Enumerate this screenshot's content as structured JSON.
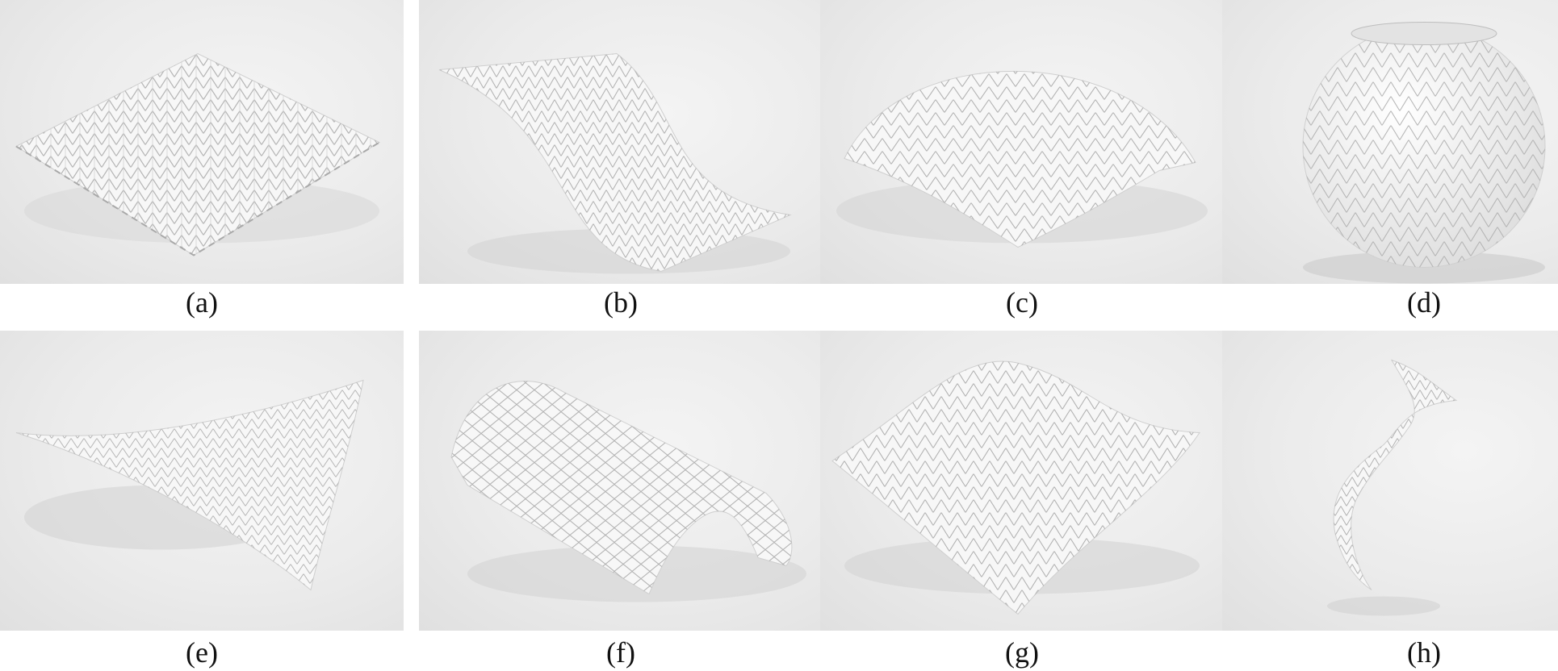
{
  "figure": {
    "panels": [
      {
        "id": "a",
        "label": "(a)",
        "shape": "flat-sheet"
      },
      {
        "id": "b",
        "label": "(b)",
        "shape": "s-curve-sheet"
      },
      {
        "id": "c",
        "label": "(c)",
        "shape": "dome"
      },
      {
        "id": "d",
        "label": "(d)",
        "shape": "sphere"
      },
      {
        "id": "e",
        "label": "(e)",
        "shape": "saddle"
      },
      {
        "id": "f",
        "label": "(f)",
        "shape": "cylinder-arch"
      },
      {
        "id": "g",
        "label": "(g)",
        "shape": "wave-sheet"
      },
      {
        "id": "h",
        "label": "(h)",
        "shape": "helicoid"
      }
    ]
  },
  "colors": {
    "background": "#ebebeb",
    "surface": "#f7f7f7",
    "pattern": "#b9b9b9",
    "shadow": "#c8c8c8"
  }
}
